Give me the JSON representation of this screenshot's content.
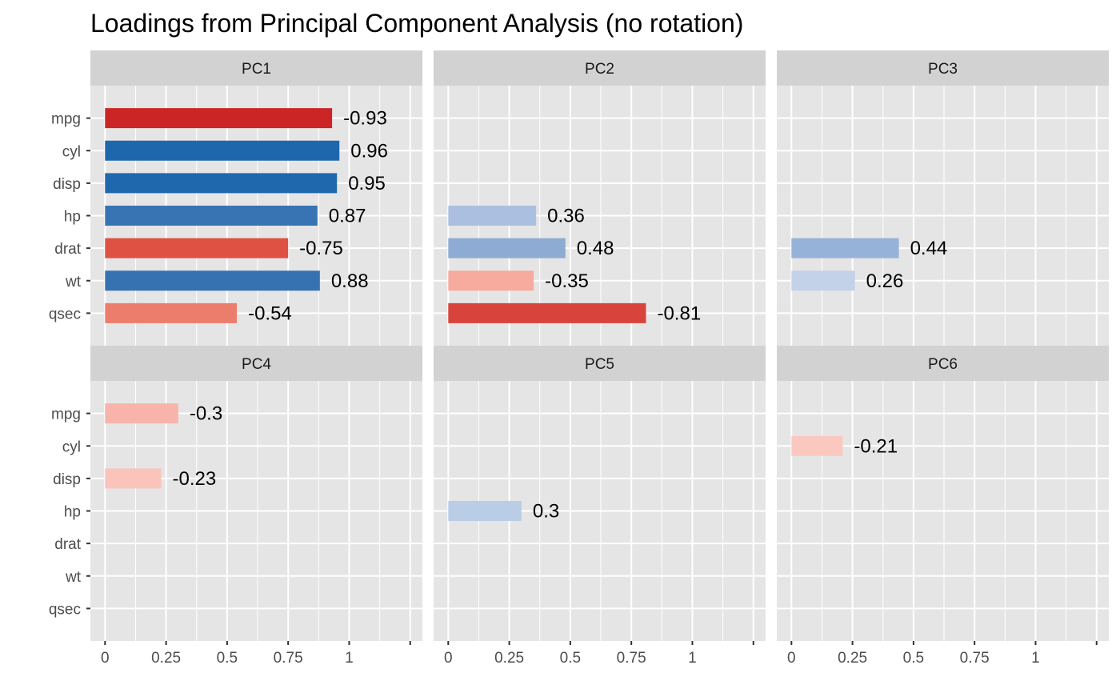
{
  "chart_data": {
    "type": "bar",
    "title": "Loadings from Principal Component Analysis (no rotation)",
    "variables": [
      "mpg",
      "cyl",
      "disp",
      "hp",
      "drat",
      "wt",
      "qsec"
    ],
    "x_ticks": [
      {
        "value": 0,
        "label": "0"
      },
      {
        "value": 0.25,
        "label": "0.25"
      },
      {
        "value": 0.5,
        "label": "0.5"
      },
      {
        "value": 0.75,
        "label": "0.75"
      },
      {
        "value": 1,
        "label": "1"
      },
      {
        "value": 1.25,
        "label": ""
      }
    ],
    "xlim": [
      -0.06,
      1.3
    ],
    "value_axis": "absolute loading",
    "colors": {
      "panel_bg": "#e5e5e5",
      "strip_bg": "#d2d2d2",
      "grid": "#ffffff",
      "axis_text": "#4d4d4d",
      "tick": "#333333"
    },
    "facets": [
      {
        "name": "PC1",
        "bars": [
          {
            "variable": "mpg",
            "value": -0.93,
            "label": "-0.93",
            "color": "#cb2526"
          },
          {
            "variable": "cyl",
            "value": 0.96,
            "label": "0.96",
            "color": "#1f67ac"
          },
          {
            "variable": "disp",
            "value": 0.95,
            "label": "0.95",
            "color": "#2068ad"
          },
          {
            "variable": "hp",
            "value": 0.87,
            "label": "0.87",
            "color": "#3874b3"
          },
          {
            "variable": "drat",
            "value": -0.75,
            "label": "-0.75",
            "color": "#df5143"
          },
          {
            "variable": "wt",
            "value": 0.88,
            "label": "0.88",
            "color": "#3672b2"
          },
          {
            "variable": "qsec",
            "value": -0.54,
            "label": "-0.54",
            "color": "#ec7d6d"
          }
        ]
      },
      {
        "name": "PC2",
        "bars": [
          {
            "variable": "hp",
            "value": 0.36,
            "label": "0.36",
            "color": "#abc0e0"
          },
          {
            "variable": "drat",
            "value": 0.48,
            "label": "0.48",
            "color": "#8eacd3"
          },
          {
            "variable": "wt",
            "value": -0.35,
            "label": "-0.35",
            "color": "#f7ab9f"
          },
          {
            "variable": "qsec",
            "value": -0.81,
            "label": "-0.81",
            "color": "#d8433b"
          }
        ]
      },
      {
        "name": "PC3",
        "bars": [
          {
            "variable": "drat",
            "value": 0.44,
            "label": "0.44",
            "color": "#97b2d8"
          },
          {
            "variable": "wt",
            "value": 0.26,
            "label": "0.26",
            "color": "#c3d2e8"
          }
        ]
      },
      {
        "name": "PC4",
        "bars": [
          {
            "variable": "mpg",
            "value": -0.3,
            "label": "-0.3",
            "color": "#f8b4aa"
          },
          {
            "variable": "disp",
            "value": -0.23,
            "label": "-0.23",
            "color": "#fac4bb"
          }
        ]
      },
      {
        "name": "PC5",
        "bars": [
          {
            "variable": "hp",
            "value": 0.3,
            "label": "0.3",
            "color": "#bacde7"
          }
        ]
      },
      {
        "name": "PC6",
        "bars": [
          {
            "variable": "cyl",
            "value": -0.21,
            "label": "-0.21",
            "color": "#fbc8c0"
          }
        ]
      }
    ]
  }
}
